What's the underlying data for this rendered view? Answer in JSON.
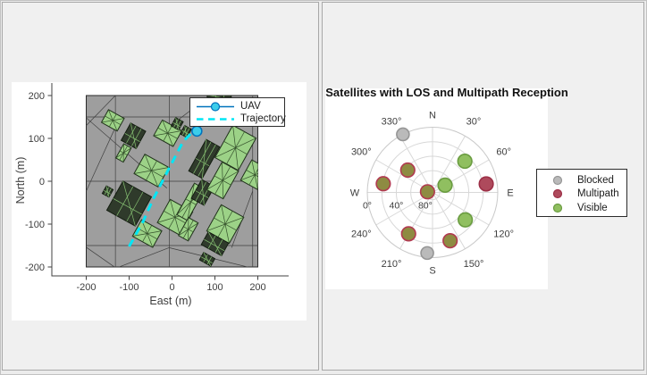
{
  "colors": {
    "figure_bg": "#ececec",
    "panel_bg": "#f0f0f0",
    "panel_border": "#a8a8a8",
    "axes_bg": "#ffffff",
    "spine": "#424242",
    "tick_text": "#3d3d3d",
    "label_text": "#3d3d3d",
    "title_text": "#121212",
    "map": {
      "ground": "#9e9e9e",
      "mesh": "#3f3f3f",
      "border": "#2a2a2a",
      "green_fill": "#9cd287",
      "green_edge": "#20301b",
      "green_line": "#35512c",
      "dark_fill": "#2f3a2b",
      "dark_edge": "#131d10",
      "dark_line": "#86c072",
      "trajectory": "#00e6f6",
      "uav_fill": "#3bcdea",
      "uav_edge": "#0072bd"
    },
    "sky": {
      "grid": "#d8d8d8",
      "outer_ring": "#c9c9c9",
      "blocked_fill": "#bababa",
      "blocked_edge": "#969696",
      "multipath_fill": "#ae4a5c",
      "multipath_edge": "#9d3047",
      "visible_fill": "#90bf60",
      "visible_edge": "#6a9c40",
      "both_fill": "#8e8b42",
      "both_edge": "#b13a50"
    }
  },
  "chart_data": [
    {
      "type": "map",
      "xlabel": "East (m)",
      "ylabel": "North (m)",
      "xticks": [
        -200,
        -100,
        0,
        100,
        200
      ],
      "yticks": [
        -200,
        -100,
        0,
        100,
        200
      ],
      "xlim": [
        -280,
        272
      ],
      "ylim": [
        -231,
        229
      ],
      "map_extent": [
        -200,
        200,
        -200,
        200
      ],
      "legend": [
        {
          "key": "uav",
          "label": "UAV"
        },
        {
          "key": "trajectory",
          "label": "Trajectory"
        }
      ],
      "uav": [
        58,
        117
      ],
      "trajectory": [
        [
          -100,
          -152
        ],
        [
          -67,
          -93
        ],
        [
          -45,
          -44
        ],
        [
          -22,
          1
        ],
        [
          2,
          47
        ],
        [
          26,
          93
        ],
        [
          45,
          112
        ],
        [
          58,
          117
        ]
      ],
      "mesh": [
        [
          -200,
          150,
          200,
          150
        ],
        [
          -200,
          0,
          200,
          0
        ],
        [
          -200,
          -150,
          200,
          -150
        ],
        [
          -132,
          -200,
          -132,
          200
        ],
        [
          -6,
          -200,
          -6,
          200
        ],
        [
          188,
          -200,
          188,
          200
        ],
        [
          -200,
          130,
          -132,
          200
        ],
        [
          -6,
          128,
          92,
          202
        ],
        [
          91,
          202,
          181,
          129
        ],
        [
          -200,
          -154,
          -130,
          -203
        ],
        [
          -131,
          -203,
          -7,
          -155
        ],
        [
          -7,
          -155,
          188,
          -203
        ],
        [
          188,
          -23,
          139,
          -155
        ],
        [
          -200,
          -23,
          -132,
          126
        ],
        [
          -200,
          148,
          -12,
          -16
        ]
      ],
      "buildings": [
        {
          "e": -138,
          "n": 142,
          "w": 42,
          "h": 34,
          "rot": 29,
          "type": "green"
        },
        {
          "e": -90,
          "n": 106,
          "w": 40,
          "h": 46,
          "rot": 29,
          "type": "dark"
        },
        {
          "e": -113,
          "n": 66,
          "w": 20,
          "h": 38,
          "rot": 29,
          "type": "green"
        },
        {
          "e": -10,
          "n": 112,
          "w": 52,
          "h": 42,
          "rot": 29,
          "type": "green"
        },
        {
          "e": 12,
          "n": 134,
          "w": 20,
          "h": 22,
          "rot": 29,
          "type": "dark"
        },
        {
          "e": 32,
          "n": 116,
          "w": 18,
          "h": 22,
          "rot": 29,
          "type": "dark"
        },
        {
          "e": 75,
          "n": 52,
          "w": 36,
          "h": 84,
          "rot": 29,
          "type": "dark"
        },
        {
          "e": 148,
          "n": 78,
          "w": 62,
          "h": 86,
          "rot": 29,
          "type": "green"
        },
        {
          "e": 193,
          "n": 15,
          "w": 46,
          "h": 54,
          "rot": 29,
          "type": "green"
        },
        {
          "e": -48,
          "n": 25,
          "w": 64,
          "h": 52,
          "rot": 29,
          "type": "green"
        },
        {
          "e": -100,
          "n": -52,
          "w": 76,
          "h": 78,
          "rot": 29,
          "type": "dark"
        },
        {
          "e": 7,
          "n": -84,
          "w": 60,
          "h": 62,
          "rot": 29,
          "type": "green"
        },
        {
          "e": 44,
          "n": -48,
          "w": 28,
          "h": 84,
          "rot": 29,
          "type": "green"
        },
        {
          "e": 72,
          "n": -26,
          "w": 34,
          "h": 50,
          "rot": 29,
          "type": "dark"
        },
        {
          "e": 118,
          "n": 2,
          "w": 44,
          "h": 74,
          "rot": 29,
          "type": "green"
        },
        {
          "e": 124,
          "n": -100,
          "w": 60,
          "h": 70,
          "rot": 29,
          "type": "green"
        },
        {
          "e": 38,
          "n": -112,
          "w": 26,
          "h": 48,
          "rot": 29,
          "type": "green"
        },
        {
          "e": -58,
          "n": -122,
          "w": 54,
          "h": 44,
          "rot": 29,
          "type": "green"
        },
        {
          "e": 100,
          "n": -146,
          "w": 54,
          "h": 34,
          "rot": 29,
          "type": "dark"
        },
        {
          "e": 82,
          "n": -182,
          "w": 30,
          "h": 20,
          "rot": 29,
          "type": "dark"
        },
        {
          "e": -150,
          "n": -24,
          "w": 18,
          "h": 20,
          "rot": 29,
          "type": "dark"
        },
        {
          "e": 110,
          "n": 196,
          "w": 56,
          "h": 12,
          "rot": 0,
          "type": "dark"
        }
      ]
    },
    {
      "type": "skyplot",
      "title": "Satellites with LOS and Multipath Reception",
      "angular_ticks": [
        {
          "az": 0,
          "label": "N"
        },
        {
          "az": 30,
          "label": "30°"
        },
        {
          "az": 60,
          "label": "60°"
        },
        {
          "az": 90,
          "label": "E"
        },
        {
          "az": 120,
          "label": "120°"
        },
        {
          "az": 150,
          "label": "150°"
        },
        {
          "az": 180,
          "label": "S"
        },
        {
          "az": 210,
          "label": "210°"
        },
        {
          "az": 240,
          "label": "240°"
        },
        {
          "az": 270,
          "label": "W"
        },
        {
          "az": 300,
          "label": "300°"
        },
        {
          "az": 330,
          "label": "330°"
        }
      ],
      "radial_ticks": [
        {
          "el": 0,
          "label": "0°"
        },
        {
          "el": 40,
          "label": "40°"
        },
        {
          "el": 80,
          "label": "80°"
        }
      ],
      "elevation_rings": [
        0,
        20,
        40,
        60,
        80
      ],
      "legend": [
        {
          "key": "blocked",
          "label": "Blocked"
        },
        {
          "key": "multipath",
          "label": "Multipath"
        },
        {
          "key": "visible",
          "label": "Visible"
        }
      ],
      "satellites": [
        {
          "az": 333,
          "el": 0,
          "status": "blocked"
        },
        {
          "az": 46,
          "el": 28,
          "status": "visible"
        },
        {
          "az": 312,
          "el": 44,
          "status": "multipath+visible"
        },
        {
          "az": 280,
          "el": 21,
          "status": "multipath+visible"
        },
        {
          "az": 81,
          "el": 15,
          "status": "multipath"
        },
        {
          "az": 60,
          "el": 70,
          "status": "visible"
        },
        {
          "az": 277,
          "el": 83,
          "status": "multipath+visible"
        },
        {
          "az": 130,
          "el": 31,
          "status": "visible"
        },
        {
          "az": 210,
          "el": 24,
          "status": "multipath+visible"
        },
        {
          "az": 160,
          "el": 19,
          "status": "multipath+visible"
        },
        {
          "az": 185,
          "el": 6,
          "status": "blocked"
        }
      ]
    }
  ]
}
